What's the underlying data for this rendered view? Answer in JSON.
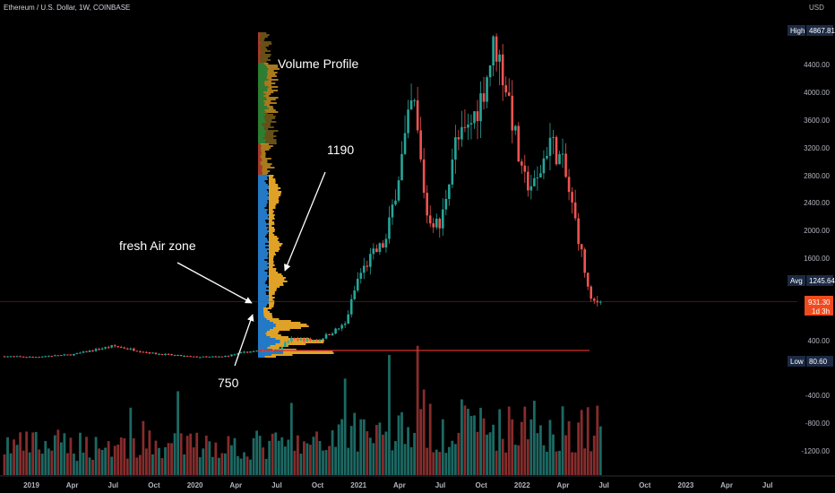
{
  "header": {
    "symbol": "Ethereum / U.S. Dollar, 1W, COINBASE",
    "currency": "USD"
  },
  "colors": {
    "up": "#26a69a",
    "down": "#ef5350",
    "vol_up": "#1d6f68",
    "vol_down": "#8e2e2e",
    "profile_blue": "#2379c6",
    "profile_orange": "#e0a127",
    "profile_green": "#2e7d32",
    "profile_red": "#a63a2a"
  },
  "annotations": {
    "volume_profile": "Volume Profile",
    "level_1190": "1190",
    "fresh_air": "fresh Air zone",
    "level_750": "750"
  },
  "tags": {
    "high": {
      "label": "High",
      "value": "4867.81"
    },
    "avg": {
      "label": "Avg",
      "value": "1245.64"
    },
    "current": {
      "value": "931.30",
      "countdown": "1d 3h"
    },
    "low": {
      "label": "Low",
      "value": "80.60"
    }
  },
  "chart_data": {
    "type": "candlestick",
    "title": "Ethereum / U.S. Dollar, 1W, COINBASE",
    "ylabel": "USD",
    "y_ticks": [
      "4400.00",
      "4000.00",
      "3600.00",
      "3200.00",
      "2800.00",
      "2400.00",
      "2000.00",
      "1600.00",
      "400.00",
      "-400.00",
      "-800.00",
      "-1200.00"
    ],
    "x_ticks": [
      "2019",
      "Apr",
      "Jul",
      "Oct",
      "2020",
      "Apr",
      "Jul",
      "Oct",
      "2021",
      "Apr",
      "Jul",
      "Oct",
      "2022",
      "Apr",
      "Jul",
      "Oct",
      "2023",
      "Apr",
      "Jul"
    ],
    "anchors_close": [
      [
        "2019-01",
        130
      ],
      [
        "2019-04",
        165
      ],
      [
        "2019-07",
        290
      ],
      [
        "2019-10",
        180
      ],
      [
        "2020-01",
        130
      ],
      [
        "2020-03",
        135
      ],
      [
        "2020-05",
        210
      ],
      [
        "2020-07",
        235
      ],
      [
        "2020-08",
        390
      ],
      [
        "2020-10",
        370
      ],
      [
        "2020-12",
        600
      ],
      [
        "2021-01",
        1300
      ],
      [
        "2021-02",
        1600
      ],
      [
        "2021-03",
        1800
      ],
      [
        "2021-05",
        3900
      ],
      [
        "2021-06",
        2200
      ],
      [
        "2021-07",
        2000
      ],
      [
        "2021-08",
        3200
      ],
      [
        "2021-09",
        3400
      ],
      [
        "2021-10",
        3900
      ],
      [
        "2021-11",
        4700
      ],
      [
        "2021-12",
        3900
      ],
      [
        "2022-01",
        2700
      ],
      [
        "2022-02",
        2600
      ],
      [
        "2022-03",
        3300
      ],
      [
        "2022-04",
        2900
      ],
      [
        "2022-05",
        2000
      ],
      [
        "2022-06",
        931.3
      ]
    ],
    "high": 4867.81,
    "low": 80.6,
    "average": 1245.64,
    "last": 931.3,
    "volume_profile": {
      "label": "Volume Profile",
      "marked_levels": [
        750,
        1190
      ]
    }
  }
}
